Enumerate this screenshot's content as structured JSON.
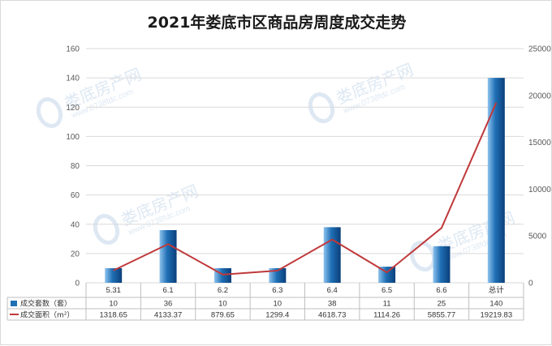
{
  "chart_data": {
    "type": "bar",
    "title": "2021年娄底市区商品房周度成交走势",
    "categories": [
      "5.31",
      "6.1",
      "6.2",
      "6.3",
      "6.4",
      "6.5",
      "6.6",
      "总计"
    ],
    "series": [
      {
        "name": "成交套数（套）",
        "type": "bar",
        "axis": "left",
        "color": "#1f6fb5",
        "values": [
          10,
          36,
          10,
          10,
          38,
          11,
          25,
          140
        ],
        "labels": [
          "10",
          "36",
          "10",
          "10",
          "38",
          "11",
          "25",
          "140"
        ]
      },
      {
        "name": "成交面积（m²）",
        "type": "line",
        "axis": "right",
        "color": "#c0393b",
        "values": [
          1318.65,
          4133.37,
          879.65,
          1299.4,
          4618.73,
          1114.26,
          5855.77,
          19219.83
        ],
        "labels": [
          "1318.65",
          "4133.37",
          "879.65",
          "1299.4",
          "4618.73",
          "1114.26",
          "5855.77",
          "19219.83"
        ]
      }
    ],
    "y_left": {
      "min": 0,
      "max": 160,
      "ticks": [
        "0",
        "20",
        "40",
        "60",
        "80",
        "100",
        "120",
        "140",
        "160"
      ]
    },
    "y_right": {
      "min": 0,
      "max": 25000,
      "ticks": [
        "0",
        "5000",
        "10000",
        "15000",
        "20000",
        "25000"
      ]
    },
    "grid": true,
    "legend": "data-table-left"
  },
  "watermark": {
    "brand": "娄底房产网",
    "url": "www.0738fdc.com"
  }
}
